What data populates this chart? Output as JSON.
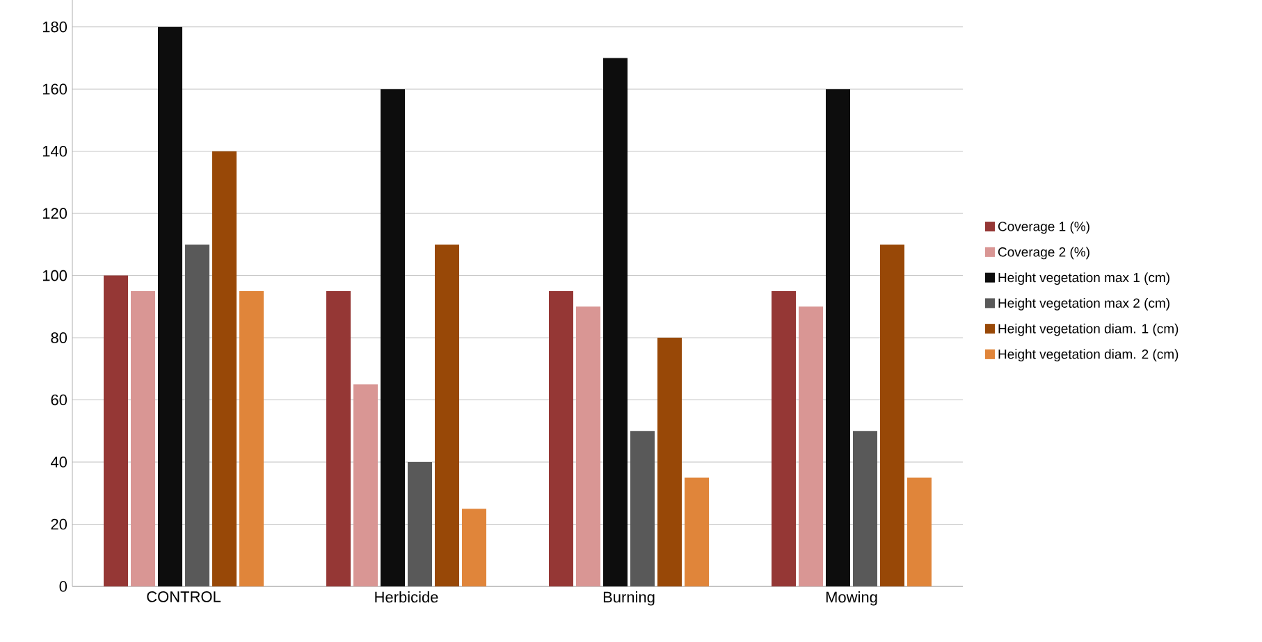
{
  "chart_data": {
    "type": "bar",
    "categories": [
      "CONTROL",
      "Herbicide",
      "Burning",
      "Mowing"
    ],
    "series": [
      {
        "name": "Coverage 1 (%)",
        "color": "#953735",
        "values": [
          100,
          95,
          95,
          95
        ]
      },
      {
        "name": "Coverage 2 (%)",
        "color": "#d99694",
        "values": [
          95,
          65,
          90,
          90
        ]
      },
      {
        "name": "Height vegetation max 1 (cm)",
        "color": "#0d0d0d",
        "values": [
          180,
          160,
          170,
          160
        ]
      },
      {
        "name": "Height vegetation max 2 (cm)",
        "color": "#595959",
        "values": [
          110,
          40,
          50,
          50
        ]
      },
      {
        "name": "Height vegetation diam. 1 (cm)",
        "color": "#984807",
        "values": [
          140,
          110,
          80,
          110
        ]
      },
      {
        "name": "Height vegetation diam. 2 (cm)",
        "color": "#e0853a",
        "values": [
          95,
          25,
          35,
          35
        ]
      }
    ],
    "ylim": [
      0,
      190
    ],
    "yticks": [
      0,
      20,
      40,
      60,
      80,
      100,
      120,
      140,
      160,
      180
    ],
    "grid": "y",
    "legend": "right"
  }
}
